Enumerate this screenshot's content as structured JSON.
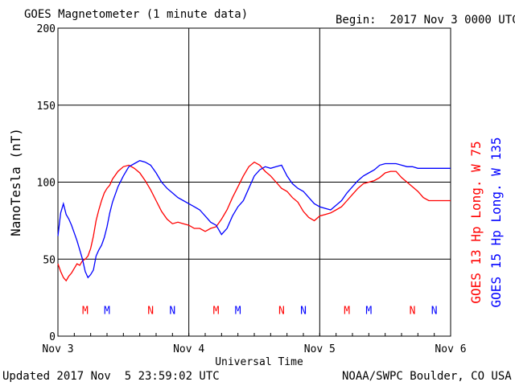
{
  "header": {
    "title": "GOES Magnetometer (1 minute data)",
    "begin": "Begin:  2017 Nov 3 0000 UTC"
  },
  "footer": {
    "updated": "Updated 2017 Nov  5 23:59:02 UTC",
    "credit": "NOAA/SWPC Boulder, CO USA"
  },
  "colors": {
    "goes13": "#ff0000",
    "goes15": "#0000ff",
    "grid": "#000000"
  },
  "chart_data": {
    "type": "line",
    "title": "GOES Magnetometer (1 minute data)",
    "xlabel": "Universal Time",
    "ylabel": "NanoTesla (nT)",
    "ylim": [
      0,
      200
    ],
    "yticks": [
      0,
      50,
      100,
      150,
      200
    ],
    "xlim_hours": [
      0,
      72
    ],
    "xtick_labels": [
      {
        "hour": 0,
        "label": "Nov 3"
      },
      {
        "hour": 24,
        "label": "Nov 4"
      },
      {
        "hour": 48,
        "label": "Nov 5"
      },
      {
        "hour": 72,
        "label": "Nov 6"
      }
    ],
    "grid": true,
    "series": [
      {
        "name": "GOES 13 Hp",
        "side_label": "GOES 13 Hp  Long. W 75",
        "color": "#ff0000",
        "x": [
          0,
          0.5,
          1,
          1.5,
          2,
          2.5,
          3,
          3.5,
          4,
          4.5,
          5,
          5.5,
          6,
          6.5,
          7,
          7.5,
          8,
          8.5,
          9,
          9.5,
          10,
          11,
          12,
          13,
          14,
          15,
          16,
          17,
          18,
          19,
          20,
          21,
          22,
          23,
          24,
          25,
          26,
          27,
          28,
          29,
          30,
          31,
          32,
          33,
          34,
          35,
          36,
          37,
          38,
          39,
          40,
          41,
          42,
          43,
          44,
          45,
          46,
          47,
          48,
          49,
          50,
          51,
          52,
          53,
          54,
          55,
          56,
          57,
          58,
          59,
          60,
          61,
          62,
          63,
          64,
          65,
          66,
          67,
          68,
          69,
          70,
          71,
          72
        ],
        "y": [
          47,
          42,
          38,
          36,
          39,
          41,
          44,
          47,
          46,
          49,
          50,
          52,
          57,
          65,
          75,
          82,
          88,
          93,
          96,
          98,
          102,
          107,
          110,
          111,
          109,
          106,
          101,
          95,
          88,
          81,
          76,
          73,
          74,
          73,
          72,
          70,
          70,
          68,
          70,
          71,
          76,
          82,
          90,
          97,
          104,
          110,
          113,
          111,
          107,
          104,
          100,
          96,
          94,
          90,
          87,
          81,
          77,
          75,
          78,
          79,
          80,
          82,
          84,
          88,
          92,
          96,
          99,
          100,
          101,
          103,
          106,
          107,
          107,
          103,
          100,
          97,
          94,
          90,
          88,
          88,
          88,
          88,
          88
        ]
      },
      {
        "name": "GOES 15 Hp",
        "side_label": "GOES 15 Hp  Long. W 135",
        "color": "#0000ff",
        "x": [
          0,
          0.5,
          1,
          1.5,
          2,
          2.5,
          3,
          3.5,
          4,
          4.5,
          5,
          5.5,
          6,
          6.5,
          7,
          7.5,
          8,
          8.5,
          9,
          9.5,
          10,
          11,
          12,
          13,
          14,
          15,
          16,
          17,
          18,
          19,
          20,
          21,
          22,
          23,
          24,
          25,
          26,
          27,
          28,
          29,
          30,
          31,
          32,
          33,
          34,
          35,
          36,
          37,
          38,
          39,
          40,
          41,
          42,
          43,
          44,
          45,
          46,
          47,
          48,
          49,
          50,
          51,
          52,
          53,
          54,
          55,
          56,
          57,
          58,
          59,
          60,
          61,
          62,
          63,
          64,
          65,
          66,
          67,
          68,
          69,
          70,
          71,
          72
        ],
        "y": [
          65,
          80,
          86,
          79,
          76,
          72,
          67,
          62,
          56,
          50,
          42,
          38,
          40,
          43,
          52,
          56,
          59,
          64,
          71,
          80,
          87,
          97,
          104,
          110,
          112,
          114,
          113,
          111,
          106,
          100,
          96,
          93,
          90,
          88,
          86,
          84,
          82,
          78,
          74,
          72,
          66,
          70,
          78,
          84,
          88,
          96,
          104,
          108,
          110,
          109,
          110,
          111,
          104,
          99,
          96,
          94,
          90,
          86,
          84,
          83,
          82,
          85,
          88,
          93,
          97,
          101,
          104,
          106,
          108,
          111,
          112,
          112,
          112,
          111,
          110,
          110,
          109,
          109,
          109,
          109,
          109,
          109,
          109
        ]
      }
    ],
    "markers": [
      {
        "label": "M",
        "color": "#ff0000",
        "hour": 5
      },
      {
        "label": "M",
        "color": "#0000ff",
        "hour": 9
      },
      {
        "label": "N",
        "color": "#ff0000",
        "hour": 17
      },
      {
        "label": "N",
        "color": "#0000ff",
        "hour": 21
      },
      {
        "label": "M",
        "color": "#ff0000",
        "hour": 29
      },
      {
        "label": "M",
        "color": "#0000ff",
        "hour": 33
      },
      {
        "label": "N",
        "color": "#ff0000",
        "hour": 41
      },
      {
        "label": "N",
        "color": "#0000ff",
        "hour": 45
      },
      {
        "label": "M",
        "color": "#ff0000",
        "hour": 53
      },
      {
        "label": "M",
        "color": "#0000ff",
        "hour": 57
      },
      {
        "label": "N",
        "color": "#ff0000",
        "hour": 65
      },
      {
        "label": "N",
        "color": "#0000ff",
        "hour": 69
      }
    ],
    "marker_level": 17
  }
}
